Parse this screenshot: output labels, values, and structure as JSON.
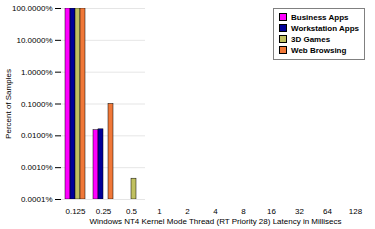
{
  "chart_data": {
    "type": "bar",
    "x_label": "Windows NT4 Kernel Mode Thread (RT Priority 28) Latency in Millisecs",
    "y_label": "Percent of Samples",
    "categories": [
      "0.125",
      "0.25",
      "0.5",
      "1",
      "2",
      "4",
      "8",
      "16",
      "32",
      "64",
      "128"
    ],
    "series": [
      {
        "name": "Business Apps",
        "color": "#ff00ff",
        "values": [
          99.98,
          0.015,
          null,
          null,
          null,
          null,
          null,
          null,
          null,
          null,
          null
        ]
      },
      {
        "name": "Workstation Apps",
        "color": "#000099",
        "values": [
          99.98,
          0.016,
          null,
          null,
          null,
          null,
          null,
          null,
          null,
          null,
          null
        ]
      },
      {
        "name": "3D Games",
        "color": "#c0c060",
        "values": [
          99.99,
          null,
          0.00045,
          null,
          null,
          null,
          null,
          null,
          null,
          null,
          null
        ]
      },
      {
        "name": "Web Browsing",
        "color": "#f07838",
        "values": [
          99.9,
          0.1,
          null,
          null,
          null,
          null,
          null,
          null,
          null,
          null,
          null
        ]
      }
    ],
    "ylim": [
      0.0001,
      100
    ],
    "yticks": [
      {
        "value": 0.0001,
        "label": "0.0001%"
      },
      {
        "value": 0.001,
        "label": "0.0010%"
      },
      {
        "value": 0.01,
        "label": "0.0100%"
      },
      {
        "value": 0.1,
        "label": "0.1000%"
      },
      {
        "value": 1,
        "label": "1.0000%"
      },
      {
        "value": 10,
        "label": "10.0000%"
      },
      {
        "value": 100,
        "label": "100.0000%"
      }
    ],
    "log": "y",
    "grid": true,
    "legend": "top-right"
  }
}
